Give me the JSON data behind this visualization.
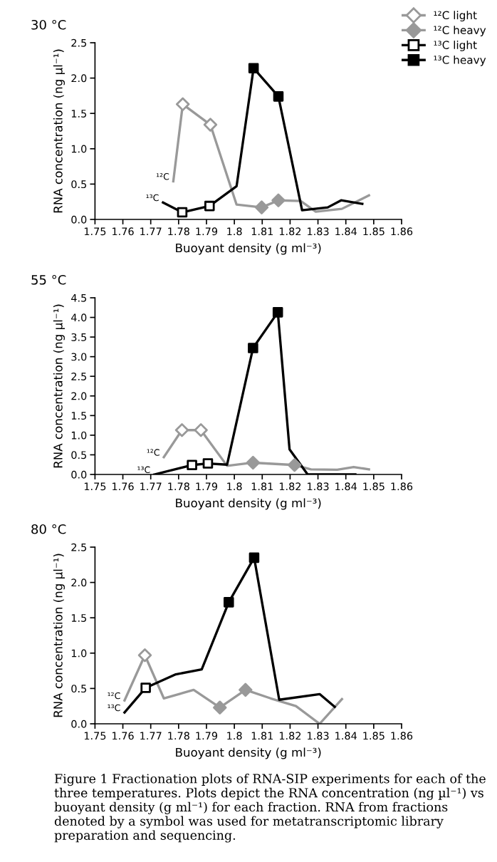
{
  "chart_data": [
    {
      "type": "line",
      "title": "30 °C",
      "xlabel": "Buoyant density (g ml⁻³)",
      "ylabel": "RNA concentration (ng µl⁻¹)",
      "xlim": [
        1.75,
        1.86
      ],
      "xticks": [
        1.75,
        1.76,
        1.77,
        1.78,
        1.79,
        1.8,
        1.81,
        1.82,
        1.83,
        1.84,
        1.85,
        1.86
      ],
      "ylim": [
        0,
        2.5
      ],
      "yticks": [
        {
          "value": 0,
          "label": "0.0"
        },
        0.5,
        {
          "value": 1,
          "label": "1.0"
        },
        1.5,
        {
          "value": 2,
          "label": "2.0"
        },
        2.5
      ],
      "grid": false,
      "legend": "top right",
      "series": [
        {
          "color": "#999999",
          "marker": "none",
          "x": [
            1.7781,
            1.7815,
            1.7914,
            1.8008,
            1.8098,
            1.8158,
            1.8238,
            1.8292,
            1.8386,
            1.8483
          ],
          "values": [
            0.54,
            1.63,
            1.34,
            0.21,
            0.17,
            0.27,
            0.26,
            0.11,
            0.15,
            0.34
          ]
        },
        {
          "color": "#000000",
          "marker": "none",
          "x": [
            1.7744,
            1.7813,
            1.7911,
            1.8008,
            1.8069,
            1.8158,
            1.8243,
            1.8335,
            1.8383,
            1.8459
          ],
          "values": [
            0.24,
            0.1,
            0.19,
            0.47,
            2.14,
            1.74,
            0.13,
            0.17,
            0.27,
            0.22
          ]
        },
        {
          "type": "scatter",
          "name": "¹²C light",
          "color": "#999999",
          "marker": "diamond",
          "x": [
            1.7815,
            1.7914
          ],
          "values": [
            1.63,
            1.34
          ]
        },
        {
          "type": "scatter",
          "name": "¹²C heavy",
          "color": "#999999",
          "marker": "diamond",
          "x": [
            1.8098,
            1.8158
          ],
          "values": [
            0.17,
            0.27
          ]
        },
        {
          "type": "scatter",
          "name": "¹³C light",
          "color": "#000000",
          "marker": "square",
          "x": [
            1.7813,
            1.7911
          ],
          "values": [
            0.1,
            0.19
          ]
        },
        {
          "type": "scatter",
          "name": "¹³C heavy",
          "color": "#000000",
          "marker": "square",
          "x": [
            1.8069,
            1.8158
          ],
          "values": [
            2.14,
            1.74
          ]
        }
      ],
      "annotations": [
        {
          "text": "¹²C",
          "x": 1.7781,
          "y": 0.54
        },
        {
          "text": "¹³C",
          "x": 1.7744,
          "y": 0.24
        }
      ]
    },
    {
      "type": "line",
      "title": "55 °C",
      "xlabel": "Buoyant density (g ml⁻³)",
      "ylabel": "RNA concentration (ng µl⁻¹)",
      "xlim": [
        1.75,
        1.86
      ],
      "xticks": [
        1.75,
        1.76,
        1.77,
        1.78,
        1.79,
        1.8,
        1.81,
        1.82,
        1.83,
        1.84,
        1.85,
        1.86
      ],
      "ylim": [
        0,
        4.5
      ],
      "yticks": [
        {
          "value": 0,
          "label": "0.0"
        },
        0.5,
        {
          "value": 1,
          "label": "1.0"
        },
        1.5,
        {
          "value": 2,
          "label": "2.0"
        },
        2.5,
        {
          "value": 3,
          "label": "3.0"
        },
        3.5,
        {
          "value": 4,
          "label": "4.0"
        },
        4.5
      ],
      "grid": false,
      "series": [
        {
          "color": "#999999",
          "marker": "none",
          "x": [
            1.7747,
            1.7812,
            1.788,
            1.7974,
            1.8067,
            1.8216,
            1.8275,
            1.8369,
            1.8428,
            1.8483
          ],
          "values": [
            0.44,
            1.13,
            1.13,
            0.22,
            0.3,
            0.24,
            0.13,
            0.12,
            0.19,
            0.13
          ]
        },
        {
          "color": "#000000",
          "marker": "none",
          "x": [
            1.7713,
            1.7848,
            1.7905,
            1.7974,
            1.8067,
            1.8156,
            1.8198,
            1.8263,
            1.8434
          ],
          "values": [
            0.0,
            0.24,
            0.28,
            0.25,
            3.22,
            4.13,
            0.64,
            0.0,
            0.0
          ]
        },
        {
          "type": "scatter",
          "color": "#999999",
          "marker": "diamond",
          "x": [
            1.7812,
            1.788
          ],
          "values": [
            1.13,
            1.13
          ]
        },
        {
          "type": "scatter",
          "color": "#999999",
          "marker": "diamond",
          "x": [
            1.8067,
            1.8216
          ],
          "values": [
            0.3,
            0.24
          ]
        },
        {
          "type": "scatter",
          "color": "#000000",
          "marker": "square",
          "x": [
            1.7848,
            1.7905
          ],
          "values": [
            0.24,
            0.28
          ]
        },
        {
          "type": "scatter",
          "color": "#000000",
          "marker": "square",
          "x": [
            1.8067,
            1.8156
          ],
          "values": [
            3.22,
            4.13
          ]
        }
      ],
      "annotations": [
        {
          "text": "¹²C",
          "x": 1.7747,
          "y": 0.44
        },
        {
          "text": "¹³C",
          "x": 1.7713,
          "y": 0.0
        }
      ]
    },
    {
      "type": "line",
      "title": "80 °C",
      "xlabel": "Buoyant density (g ml⁻³)",
      "ylabel": "RNA concentration (ng µl⁻¹)",
      "xlim": [
        1.75,
        1.86
      ],
      "xticks": [
        1.75,
        1.76,
        1.77,
        1.78,
        1.79,
        1.8,
        1.81,
        1.82,
        1.83,
        1.84,
        1.85,
        1.86
      ],
      "ylim": [
        0,
        2.5
      ],
      "yticks": [
        {
          "value": 0,
          "label": "0.0"
        },
        0.5,
        {
          "value": 1,
          "label": "1.0"
        },
        1.5,
        {
          "value": 2,
          "label": "2.0"
        },
        2.5
      ],
      "grid": false,
      "series": [
        {
          "color": "#999999",
          "marker": "none",
          "x": [
            1.7606,
            1.7679,
            1.7747,
            1.7854,
            1.7948,
            1.804,
            1.813,
            1.8221,
            1.8306,
            1.8386
          ],
          "values": [
            0.33,
            0.97,
            0.36,
            0.48,
            0.23,
            0.48,
            0.36,
            0.25,
            0.0,
            0.35
          ]
        },
        {
          "color": "#000000",
          "marker": "none",
          "x": [
            1.7606,
            1.7682,
            1.779,
            1.7883,
            1.798,
            1.8071,
            1.8161,
            1.8306,
            1.836
          ],
          "values": [
            0.16,
            0.51,
            0.7,
            0.77,
            1.72,
            2.35,
            0.34,
            0.42,
            0.24
          ]
        },
        {
          "type": "scatter",
          "color": "#999999",
          "marker": "diamond",
          "x": [
            1.7679
          ],
          "values": [
            0.97
          ]
        },
        {
          "type": "scatter",
          "color": "#999999",
          "marker": "diamond",
          "x": [
            1.7948,
            1.804
          ],
          "values": [
            0.23,
            0.48
          ]
        },
        {
          "type": "scatter",
          "color": "#000000",
          "marker": "square",
          "x": [
            1.7682
          ],
          "values": [
            0.51
          ]
        },
        {
          "type": "scatter",
          "color": "#000000",
          "marker": "square",
          "x": [
            1.798,
            1.8071
          ],
          "values": [
            1.72,
            2.35
          ]
        }
      ],
      "annotations": [
        {
          "text": "¹²C",
          "x": 1.7606,
          "y": 0.33
        },
        {
          "text": "¹³C",
          "x": 1.7606,
          "y": 0.16
        },
        "Figure 1 Fractionation plots of RNA-SIP experiments for each of the three temperatures. Plots depict the RNA concentration (ng µl⁻¹) vs buoyant density (g ml⁻¹) for each fraction. RNA from fractions denoted by a symbol was used for metatranscriptomic library preparation and sequencing."
      ]
    }
  ]
}
